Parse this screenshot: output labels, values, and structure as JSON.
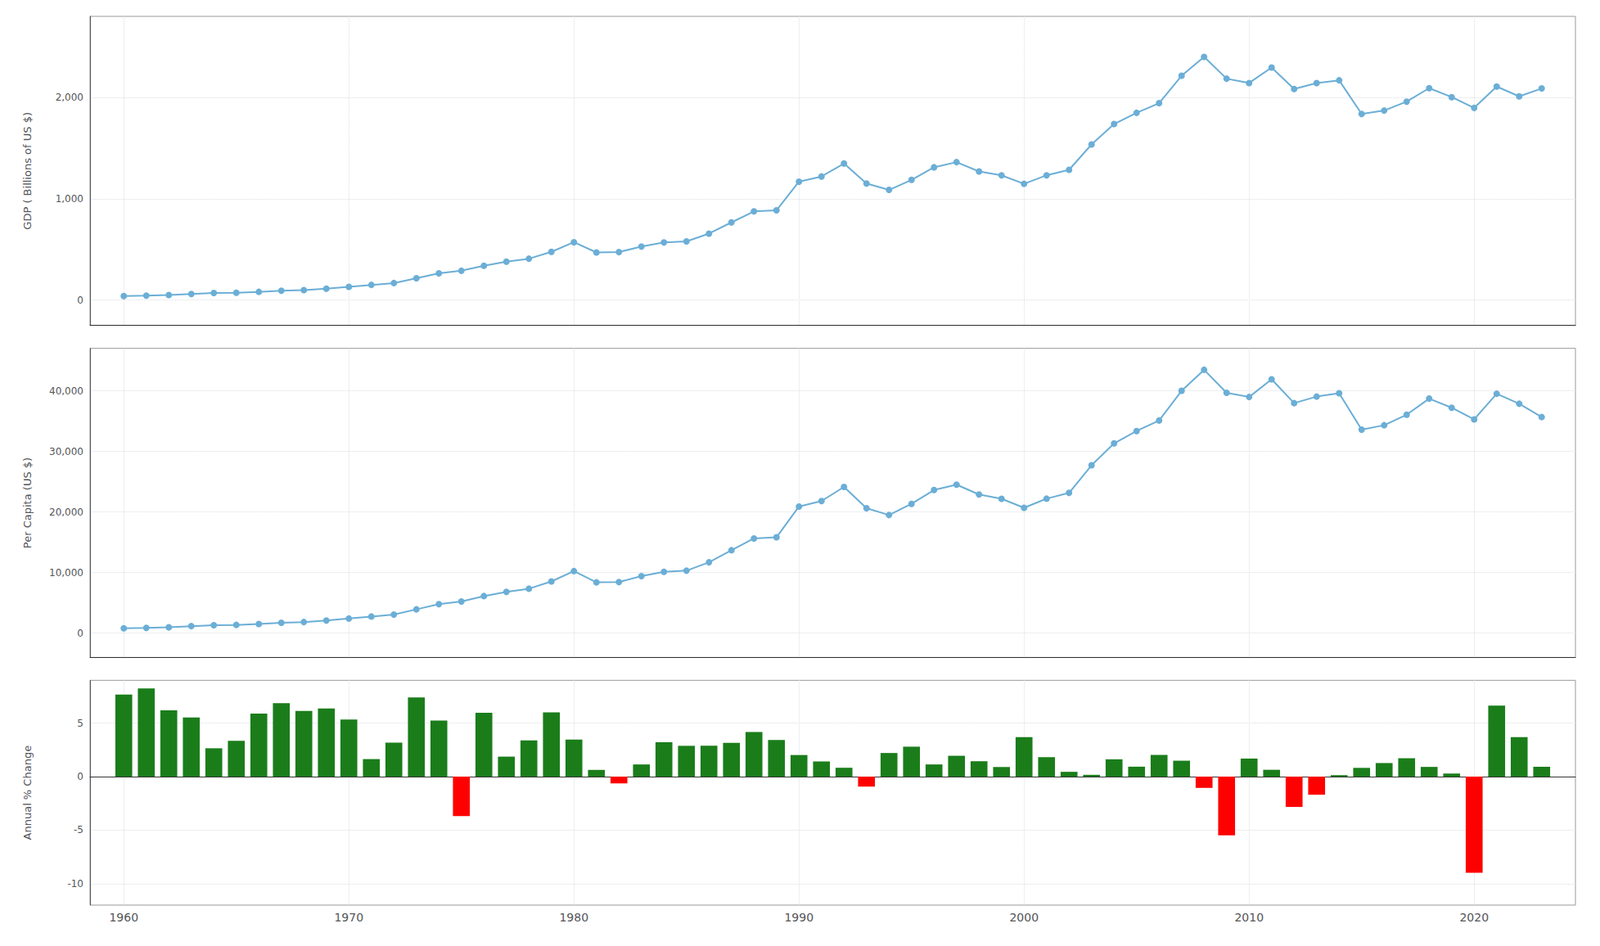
{
  "chart_data": [
    {
      "type": "line",
      "x": [
        1960,
        1961,
        1962,
        1963,
        1964,
        1965,
        1966,
        1967,
        1968,
        1969,
        1970,
        1971,
        1972,
        1973,
        1974,
        1975,
        1976,
        1977,
        1978,
        1979,
        1980,
        1981,
        1982,
        1983,
        1984,
        1985,
        1986,
        1987,
        1988,
        1989,
        1990,
        1991,
        1992,
        1993,
        1994,
        1995,
        1996,
        1997,
        1998,
        1999,
        2000,
        2001,
        2002,
        2003,
        2004,
        2005,
        2006,
        2007,
        2008,
        2009,
        2010,
        2011,
        2012,
        2013,
        2014,
        2015,
        2016,
        2017,
        2018,
        2019,
        2020,
        2021,
        2022,
        2023
      ],
      "values": [
        40.38,
        44.17,
        49.87,
        60.62,
        69.89,
        72.27,
        81.38,
        92.61,
        98.65,
        113.14,
        130.99,
        149.93,
        167.98,
        216.28,
        264.48,
        289.68,
        339.16,
        378.73,
        408.27,
        476.17,
        571.6,
        470.23,
        473.73,
        528.43,
        568.48,
        579.42,
        656.07,
        766.79,
        875.54,
        885.44,
        1169.23,
        1219.85,
        1347.7,
        1149.93,
        1087.56,
        1186.19,
        1310.71,
        1361.47,
        1269.64,
        1231.65,
        1147.54,
        1231.79,
        1285.5,
        1536.4,
        1737.78,
        1848.26,
        1943.3,
        2213.88,
        2400.19,
        2185.19,
        2142.43,
        2295.66,
        2082.72,
        2141.93,
        2169.01,
        1836.64,
        1870.37,
        1958.62,
        2091.24,
        2003.02,
        1896.75,
        2107.7,
        2010.43,
        2088.77
      ],
      "ylabel": "GDP ( Billions of US $)",
      "color": "#6baed6",
      "marker": "circle",
      "xlim": [
        1958.5,
        2024.5
      ],
      "xticks": [
        1960,
        1970,
        1980,
        1990,
        2000,
        2010,
        2020
      ],
      "ylim": [
        -250,
        2800
      ],
      "yticks": [
        0,
        {
          "value": 1000,
          "label": "1,000"
        },
        {
          "value": 2000,
          "label": "2,000"
        }
      ],
      "grid": true,
      "tick_labels": "y"
    },
    {
      "type": "line",
      "x": [
        1960,
        1961,
        1962,
        1963,
        1964,
        1965,
        1966,
        1967,
        1968,
        1969,
        1970,
        1971,
        1972,
        1973,
        1974,
        1975,
        1976,
        1977,
        1978,
        1979,
        1980,
        1981,
        1982,
        1983,
        1984,
        1985,
        1986,
        1987,
        1988,
        1989,
        1990,
        1991,
        1992,
        1993,
        1994,
        1995,
        1996,
        1997,
        1998,
        1999,
        2000,
        2001,
        2002,
        2003,
        2004,
        2005,
        2006,
        2007,
        2008,
        2009,
        2010,
        2011,
        2012,
        2013,
        2014,
        2015,
        2016,
        2017,
        2018,
        2019,
        2020,
        2021,
        2022,
        2023
      ],
      "values": [
        796,
        861,
        962,
        1157,
        1322,
        1358,
        1521,
        1724,
        1830,
        2091,
        2411,
        2743,
        3062,
        3928,
        4792,
        5234,
        6118,
        6818,
        7333,
        8538,
        10240,
        8389,
        8444,
        9418,
        10122,
        10312,
        11697,
        13680,
        15630,
        15822,
        20900,
        21805,
        24133,
        20613,
        19493,
        21339,
        23617,
        24510,
        22888,
        22177,
        20683,
        22188,
        23151,
        27710,
        31322,
        33356,
        35084,
        39990,
        43456,
        39670,
        38974,
        41886,
        37956,
        39043,
        39602,
        33584,
        34311,
        36046,
        38706,
        37194,
        35284,
        39509,
        37861,
        35658
      ],
      "ylabel": "Per Capita (US $)",
      "color": "#6baed6",
      "marker": "circle",
      "xlim": [
        1958.5,
        2024.5
      ],
      "xticks": [
        1960,
        1970,
        1980,
        1990,
        2000,
        2010,
        2020
      ],
      "ylim": [
        -4000,
        47000
      ],
      "yticks": [
        0,
        {
          "value": 10000,
          "label": "10,000"
        },
        {
          "value": 20000,
          "label": "20,000"
        },
        {
          "value": 30000,
          "label": "30,000"
        },
        {
          "value": 40000,
          "label": "40,000"
        }
      ],
      "grid": true,
      "tick_labels": "y"
    },
    {
      "type": "bar",
      "x": [
        1960,
        1961,
        1962,
        1963,
        1964,
        1965,
        1966,
        1967,
        1968,
        1969,
        1970,
        1971,
        1972,
        1973,
        1974,
        1975,
        1976,
        1977,
        1978,
        1979,
        1980,
        1981,
        1982,
        1983,
        1984,
        1985,
        1986,
        1987,
        1988,
        1989,
        1990,
        1991,
        1992,
        1993,
        1994,
        1995,
        1996,
        1997,
        1998,
        1999,
        2000,
        2001,
        2002,
        2003,
        2004,
        2005,
        2006,
        2007,
        2008,
        2009,
        2010,
        2011,
        2012,
        2013,
        2014,
        2015,
        2016,
        2017,
        2018,
        2019,
        2020,
        2021,
        2022,
        2023
      ],
      "values": [
        7.66,
        8.24,
        6.19,
        5.53,
        2.65,
        3.34,
        5.9,
        6.87,
        6.14,
        6.36,
        5.34,
        1.64,
        3.17,
        7.41,
        5.25,
        -3.68,
        5.97,
        1.87,
        3.38,
        6.01,
        3.47,
        0.63,
        -0.63,
        1.14,
        3.22,
        2.88,
        2.89,
        3.16,
        4.17,
        3.43,
        2.02,
        1.42,
        0.83,
        -0.93,
        2.21,
        2.8,
        1.14,
        1.95,
        1.44,
        0.9,
        3.69,
        1.82,
        0.45,
        0.17,
        1.62,
        0.93,
        2.03,
        1.49,
        -1.05,
        -5.48,
        1.69,
        0.64,
        -2.83,
        -1.69,
        0.14,
        0.82,
        1.27,
        1.72,
        0.91,
        0.29,
        -8.98,
        6.64,
        3.69,
        0.92
      ],
      "colors": [
        "#1a7d1a",
        "#1a7d1a",
        "#1a7d1a",
        "#1a7d1a",
        "#1a7d1a",
        "#1a7d1a",
        "#1a7d1a",
        "#1a7d1a",
        "#1a7d1a",
        "#1a7d1a",
        "#1a7d1a",
        "#1a7d1a",
        "#1a7d1a",
        "#1a7d1a",
        "#1a7d1a",
        "#ff0000",
        "#1a7d1a",
        "#1a7d1a",
        "#1a7d1a",
        "#1a7d1a",
        "#1a7d1a",
        "#1a7d1a",
        "#ff0000",
        "#1a7d1a",
        "#1a7d1a",
        "#1a7d1a",
        "#1a7d1a",
        "#1a7d1a",
        "#1a7d1a",
        "#1a7d1a",
        "#1a7d1a",
        "#1a7d1a",
        "#1a7d1a",
        "#ff0000",
        "#1a7d1a",
        "#1a7d1a",
        "#1a7d1a",
        "#1a7d1a",
        "#1a7d1a",
        "#1a7d1a",
        "#1a7d1a",
        "#1a7d1a",
        "#1a7d1a",
        "#1a7d1a",
        "#1a7d1a",
        "#1a7d1a",
        "#1a7d1a",
        "#1a7d1a",
        "#ff0000",
        "#ff0000",
        "#1a7d1a",
        "#1a7d1a",
        "#ff0000",
        "#ff0000",
        "#1a7d1a",
        "#1a7d1a",
        "#1a7d1a",
        "#1a7d1a",
        "#1a7d1a",
        "#1a7d1a",
        "#ff0000",
        "#1a7d1a",
        "#1a7d1a",
        "#1a7d1a"
      ],
      "ylabel": "Annual % Change",
      "xlim": [
        1958.5,
        2024.5
      ],
      "xticks": [
        1960,
        1970,
        1980,
        1990,
        2000,
        2010,
        2020
      ],
      "ylim": [
        -12,
        9
      ],
      "yticks": [
        -10,
        -5,
        0,
        5
      ],
      "grid": true
    }
  ]
}
